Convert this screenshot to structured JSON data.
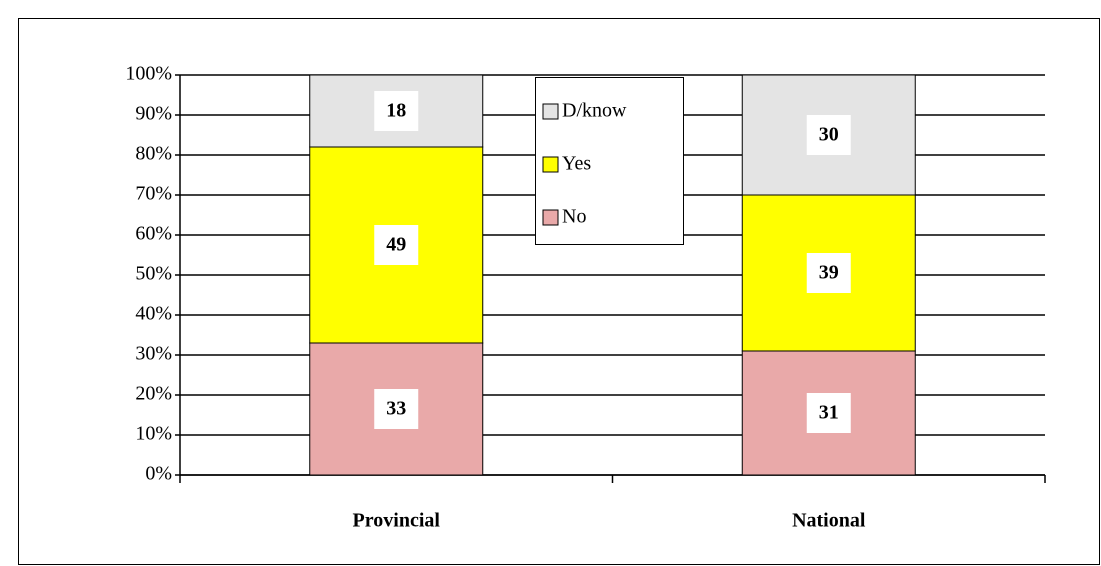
{
  "chart_data": {
    "type": "stacked_bar",
    "categories": [
      "Provincial",
      "National"
    ],
    "series": [
      {
        "name": "No",
        "color": "#e9a9a9",
        "values": [
          33,
          31
        ]
      },
      {
        "name": "Yes",
        "color": "#ffff00",
        "values": [
          49,
          39
        ]
      },
      {
        "name": "D/know",
        "color": "#e4e4e4",
        "values": [
          18,
          30
        ]
      }
    ],
    "ylim": [
      0,
      100
    ],
    "yticks": [
      {
        "value": 0,
        "label": "0%"
      },
      {
        "value": 10,
        "label": "10%"
      },
      {
        "value": 20,
        "label": "20%"
      },
      {
        "value": 30,
        "label": "30%"
      },
      {
        "value": 40,
        "label": "40%"
      },
      {
        "value": 50,
        "label": "50%"
      },
      {
        "value": 60,
        "label": "60%"
      },
      {
        "value": 70,
        "label": "70%"
      },
      {
        "value": 80,
        "label": "80%"
      },
      {
        "value": 90,
        "label": "90%"
      },
      {
        "value": 100,
        "label": "100%"
      }
    ],
    "grid": true
  }
}
